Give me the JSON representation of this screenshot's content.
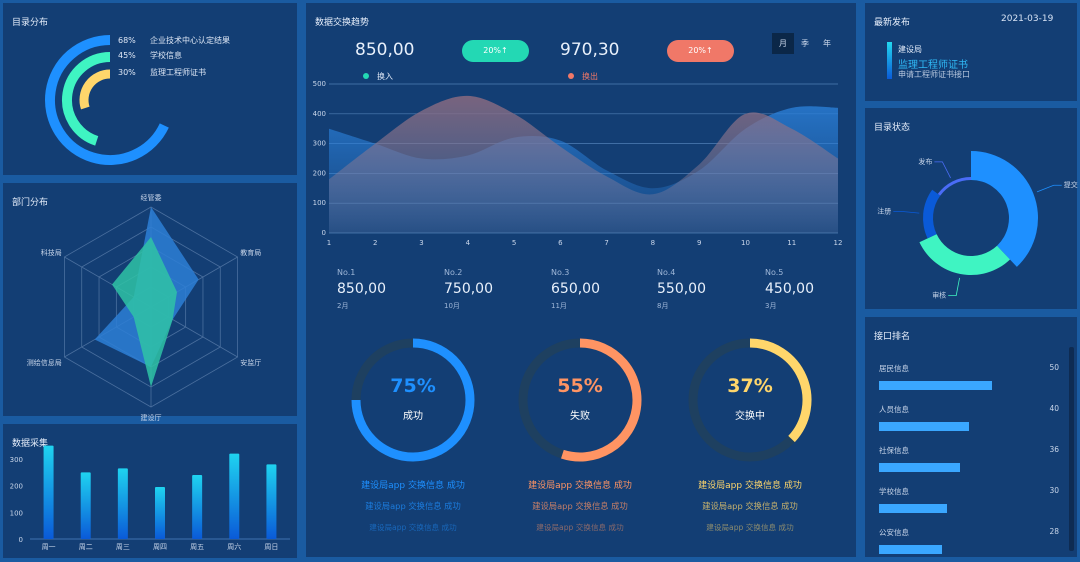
{
  "catalog_dist": {
    "title": "目录分布",
    "items": [
      {
        "percent": "68%",
        "value": 68,
        "label": "企业技术中心认定结果",
        "color": "#1e90ff"
      },
      {
        "percent": "45%",
        "value": 45,
        "label": "学校信息",
        "color": "#3ff4c2"
      },
      {
        "percent": "30%",
        "value": 30,
        "label": "监理工程师证书",
        "color": "#ffd66b"
      }
    ]
  },
  "dept_dist": {
    "title": "部门分布",
    "chart_data": {
      "type": "radar",
      "indicators": [
        "经管委",
        "教育局",
        "安监厅",
        "建设厅",
        "测绘信息局",
        "科技局"
      ],
      "max": 100,
      "series": [
        {
          "values": [
            100,
            55,
            25,
            60,
            65,
            20
          ],
          "color": "#2d7fd6"
        },
        {
          "values": [
            70,
            30,
            25,
            80,
            20,
            45
          ],
          "color": "#2fc3a6"
        }
      ]
    }
  },
  "data_collect": {
    "title": "数据采集",
    "chart_data": {
      "type": "bar",
      "categories": [
        "周一",
        "周二",
        "周三",
        "周四",
        "周五",
        "周六",
        "周日"
      ],
      "values": [
        350,
        250,
        265,
        195,
        240,
        320,
        280
      ],
      "ylim": [
        0,
        350
      ],
      "yticks": [
        "0",
        "100",
        "200",
        "300"
      ]
    }
  },
  "exchange_trend": {
    "title": "数据交换趋势",
    "in_value": "850,00",
    "in_badge": "20%↑",
    "out_value": "970,30",
    "out_badge": "20%↑",
    "periods": [
      "月",
      "季",
      "年"
    ],
    "active_period": "月",
    "colors": {
      "in": "#23d8b4",
      "out": "#f07868"
    },
    "chart_data": {
      "type": "area",
      "x": [
        1,
        2,
        3,
        4,
        5,
        6,
        7,
        8,
        9,
        10,
        11,
        12
      ],
      "xticks": [
        "1",
        "2",
        "3",
        "4",
        "5",
        "6",
        "7",
        "8",
        "9",
        "10",
        "11",
        "12"
      ],
      "yticks": [
        "0",
        "100",
        "200",
        "300",
        "400",
        "500"
      ],
      "ylim": [
        0,
        500
      ],
      "grid": true,
      "legend_position": "top",
      "series": [
        {
          "name": "换入",
          "values": [
            350,
            300,
            250,
            260,
            320,
            310,
            210,
            150,
            210,
            350,
            420,
            420
          ]
        },
        {
          "name": "换出",
          "values": [
            180,
            300,
            410,
            460,
            400,
            290,
            190,
            130,
            230,
            400,
            350,
            250
          ]
        }
      ]
    },
    "ranking": [
      {
        "no": "No.1",
        "value": "850,00",
        "month": "2月"
      },
      {
        "no": "No.2",
        "value": "750,00",
        "month": "10月"
      },
      {
        "no": "No.3",
        "value": "650,00",
        "month": "11月"
      },
      {
        "no": "No.4",
        "value": "550,00",
        "month": "8月"
      },
      {
        "no": "No.5",
        "value": "450,00",
        "month": "3月"
      }
    ],
    "gauges": [
      {
        "percent": "75%",
        "value": 75,
        "label": "成功",
        "color": "#1e90ff",
        "lines": [
          "建设局app 交换信息 成功",
          "建设局app 交换信息 成功",
          "建设局app 交换信息 成功"
        ]
      },
      {
        "percent": "55%",
        "value": 55,
        "label": "失败",
        "color": "#ff9463",
        "lines": [
          "建设局app 交换信息 成功",
          "建设局app 交换信息 成功",
          "建设局app 交换信息 成功"
        ]
      },
      {
        "percent": "37%",
        "value": 37,
        "label": "交换中",
        "color": "#ffd66b",
        "lines": [
          "建设局app 交换信息 成功",
          "建设局app 交换信息 成功",
          "建设局app 交换信息 成功"
        ]
      }
    ]
  },
  "latest": {
    "title": "最新发布",
    "date": "2021-03-19",
    "dept": "建设局",
    "name": "监理工程师证书",
    "desc": "申请工程师证书接口"
  },
  "catalog_status": {
    "title": "目录状态",
    "chart_data": {
      "type": "pie",
      "slices": [
        {
          "label": "提交",
          "value": 38,
          "color": "#1e90ff"
        },
        {
          "label": "审核",
          "value": 30,
          "color": "#3ff4c2"
        },
        {
          "label": "注册",
          "value": 17,
          "color": "#0a5ad8"
        },
        {
          "label": "发布",
          "value": 15,
          "color": "#4a6cf7"
        }
      ]
    }
  },
  "api_rank": {
    "title": "接口排名",
    "max": 80,
    "items": [
      {
        "label": "居民信息",
        "value": 50
      },
      {
        "label": "人员信息",
        "value": 40
      },
      {
        "label": "社保信息",
        "value": 36
      },
      {
        "label": "学校信息",
        "value": 30
      },
      {
        "label": "公安信息",
        "value": 28
      }
    ]
  }
}
